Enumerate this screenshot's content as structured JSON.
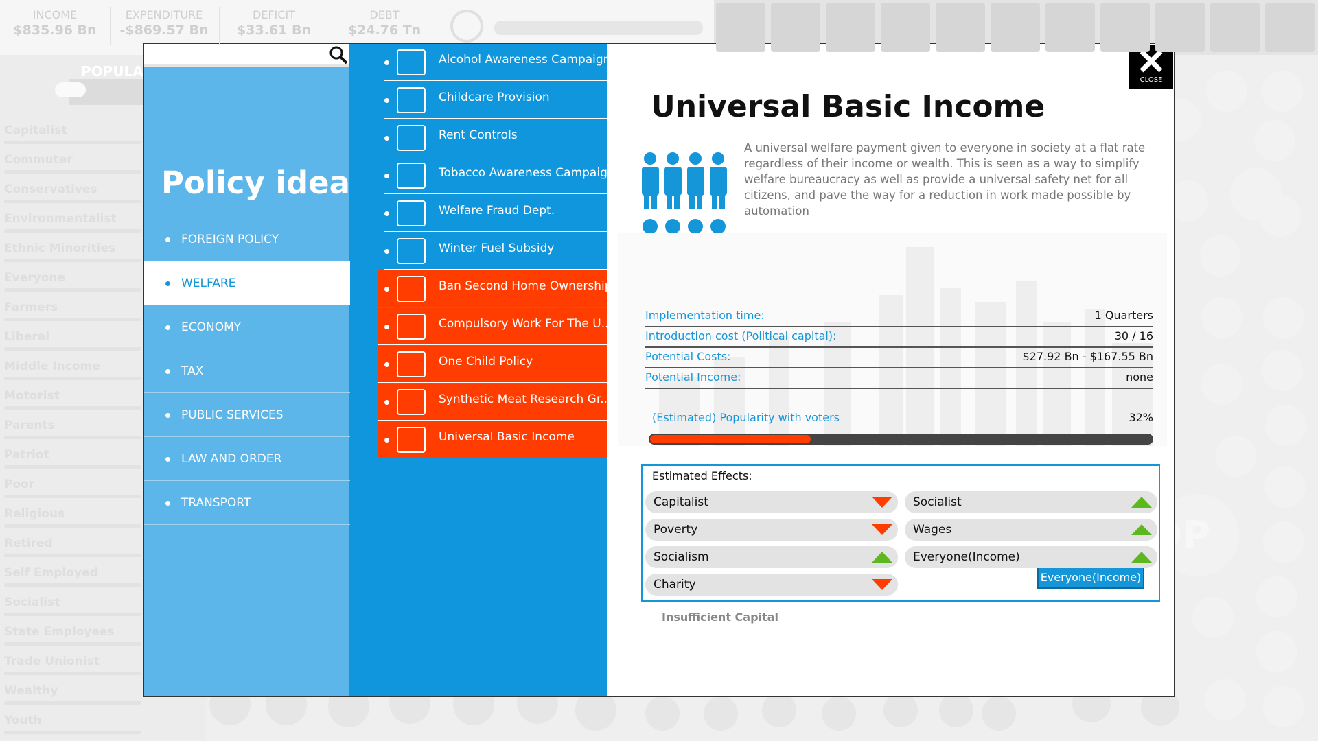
{
  "top_bar": {
    "stats": [
      {
        "label": "INCOME",
        "value": "$835.96 Bn"
      },
      {
        "label": "EXPENDITURE",
        "value": "-$869.57 Bn"
      },
      {
        "label": "DEFICIT",
        "value": "$33.61 Bn"
      },
      {
        "label": "DEBT",
        "value": "$24.76 Tn"
      }
    ]
  },
  "sidebar": {
    "title": "POPULAR",
    "groups": [
      "Capitalist",
      "Commuter",
      "Conservatives",
      "Environmentalist",
      "Ethnic Minorities",
      "Everyone",
      "Farmers",
      "Liberal",
      "Middle Income",
      "Motorist",
      "Parents",
      "Patriot",
      "Poor",
      "Religious",
      "Retired",
      "Self Employed",
      "Socialist",
      "State Employees",
      "Trade Unionist",
      "Wealthy",
      "Youth"
    ]
  },
  "background": {
    "gdp_label": "GDP"
  },
  "dialog": {
    "title": "Policy ideas",
    "close_label": "CLOSE",
    "selected_category": 1,
    "categories": [
      "FOREIGN POLICY",
      "WELFARE",
      "ECONOMY",
      "TAX",
      "PUBLIC SERVICES",
      "LAW AND ORDER",
      "TRANSPORT"
    ],
    "policies": [
      {
        "name": "Alcohol Awareness Campaign",
        "color": "#0f96dc"
      },
      {
        "name": "Childcare Provision",
        "color": "#0f96dc"
      },
      {
        "name": "Rent Controls",
        "color": "#0f96dc"
      },
      {
        "name": "Tobacco Awareness Campaign",
        "color": "#0f96dc"
      },
      {
        "name": "Welfare Fraud Dept.",
        "color": "#0f96dc"
      },
      {
        "name": "Winter Fuel Subsidy",
        "color": "#0f96dc"
      },
      {
        "name": "Ban Second Home Ownership",
        "color": "#ff3d00"
      },
      {
        "name": "Compulsory Work For The U...",
        "color": "#ff3d00"
      },
      {
        "name": "One Child Policy",
        "color": "#ff3d00"
      },
      {
        "name": "Synthetic Meat Research Gr...",
        "color": "#ff3d00"
      },
      {
        "name": "Universal Basic Income",
        "color": "#ff3d00"
      }
    ],
    "detail": {
      "title": "Universal Basic Income",
      "description": "A universal welfare payment given to everyone in society at a flat rate regardless of their income or wealth. This is seen as a way to simplify welfare bureaucracy as well as provide a universal safety net for all citizens, and pave the way for a reduction in work made possible by automation",
      "stats": [
        {
          "label": "Implementation time:",
          "value": "1 Quarters"
        },
        {
          "label": "Introduction cost (Political capital):",
          "value": "30 / 16"
        },
        {
          "label": "Potential Costs:",
          "value": "$27.92 Bn - $167.55 Bn"
        },
        {
          "label": "Potential Income:",
          "value": "none"
        }
      ],
      "popularity": {
        "label": "(Estimated) Popularity with voters",
        "text": "32%",
        "value": 32
      },
      "effects": {
        "title": "Estimated Effects:",
        "items": [
          {
            "name": "Capitalist",
            "direction": "down"
          },
          {
            "name": "Socialist",
            "direction": "up"
          },
          {
            "name": "Poverty",
            "direction": "down"
          },
          {
            "name": "Wages",
            "direction": "up"
          },
          {
            "name": "Socialism",
            "direction": "up"
          },
          {
            "name": "Everyone(Income)",
            "direction": "up"
          },
          {
            "name": "Charity",
            "direction": "down"
          }
        ]
      },
      "tooltip": "Everyone(Income)",
      "status": "Insufficient Capital"
    }
  }
}
